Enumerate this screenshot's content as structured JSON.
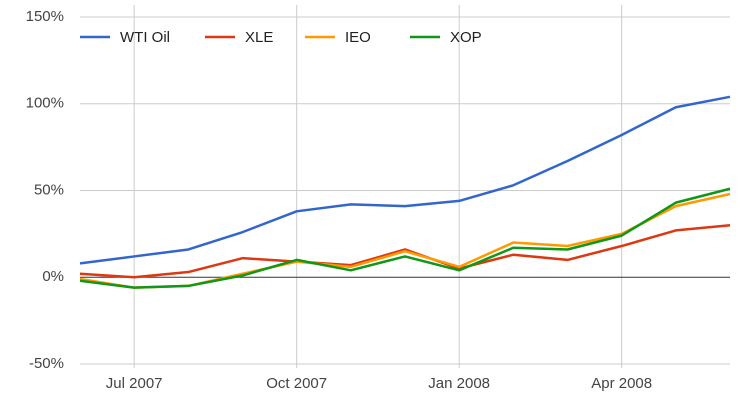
{
  "chart_data": {
    "type": "line",
    "categories": [
      null,
      "Jul 2007",
      null,
      null,
      "Oct 2007",
      null,
      null,
      "Jan 2008",
      null,
      null,
      "Apr 2008",
      null,
      null
    ],
    "series": [
      {
        "name": "WTI Oil",
        "color": "#3366cc",
        "values": [
          8,
          12,
          16,
          26,
          38,
          42,
          41,
          44,
          53,
          67,
          82,
          98,
          104
        ]
      },
      {
        "name": "XLE",
        "color": "#dc3912",
        "values": [
          2,
          0,
          3,
          11,
          9,
          7,
          16,
          5,
          13,
          10,
          18,
          27,
          30
        ]
      },
      {
        "name": "IEO",
        "color": "#ff9900",
        "values": [
          -1,
          -6,
          -5,
          2,
          9,
          6,
          15,
          6,
          20,
          18,
          25,
          41,
          48
        ]
      },
      {
        "name": "XOP",
        "color": "#109618",
        "values": [
          -2,
          -6,
          -5,
          1,
          10,
          4,
          12,
          4,
          17,
          16,
          24,
          43,
          51
        ]
      }
    ],
    "ylim": [
      -50,
      150
    ],
    "yticks": [
      {
        "value": -50,
        "label": "-50%"
      },
      {
        "value": 0,
        "label": "0%"
      },
      {
        "value": 50,
        "label": "50%"
      },
      {
        "value": 100,
        "label": "100%"
      },
      {
        "value": 150,
        "label": "150%"
      }
    ],
    "grid": true,
    "legend": "top-left"
  }
}
